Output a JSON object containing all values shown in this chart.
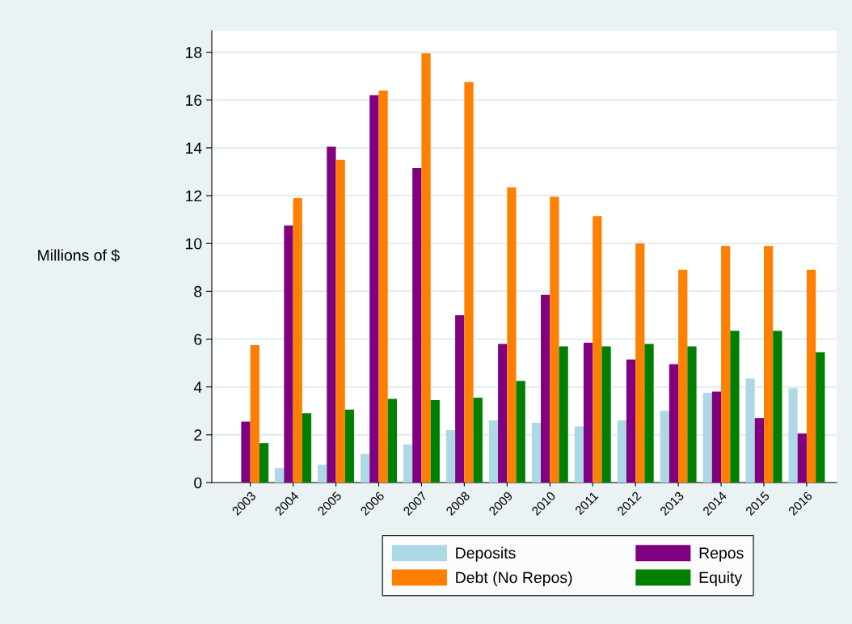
{
  "chart_data": {
    "type": "bar",
    "ylabel": "Millions of $",
    "categories": [
      "2003",
      "2004",
      "2005",
      "2006",
      "2007",
      "2008",
      "2009",
      "2010",
      "2011",
      "2012",
      "2013",
      "2014",
      "2015",
      "2016"
    ],
    "series": [
      {
        "name": "Deposits",
        "color": "#add8e6",
        "values": [
          0,
          0.6,
          0.75,
          1.2,
          1.6,
          2.2,
          2.6,
          2.5,
          2.35,
          2.6,
          3.0,
          3.75,
          4.35,
          3.95
        ]
      },
      {
        "name": "Repos",
        "color": "#800080",
        "values": [
          2.55,
          10.75,
          14.05,
          16.2,
          13.15,
          7.0,
          5.8,
          7.85,
          5.85,
          5.15,
          4.95,
          3.8,
          2.7,
          2.05
        ]
      },
      {
        "name": "Debt (No Repos)",
        "color": "#ff7f00",
        "values": [
          5.75,
          11.9,
          13.5,
          16.4,
          17.95,
          16.75,
          12.35,
          11.95,
          11.15,
          10.0,
          8.9,
          9.9,
          9.9,
          8.9
        ]
      },
      {
        "name": "Equity",
        "color": "#008000",
        "values": [
          1.65,
          2.9,
          3.05,
          3.5,
          3.45,
          3.55,
          4.25,
          5.7,
          5.7,
          5.8,
          5.7,
          6.35,
          6.35,
          5.45
        ]
      }
    ],
    "ylim": [
      0,
      18.9
    ],
    "yticks": [
      0,
      2,
      4,
      6,
      8,
      10,
      12,
      14,
      16,
      18
    ],
    "grid": "y",
    "legend": "bottom"
  }
}
